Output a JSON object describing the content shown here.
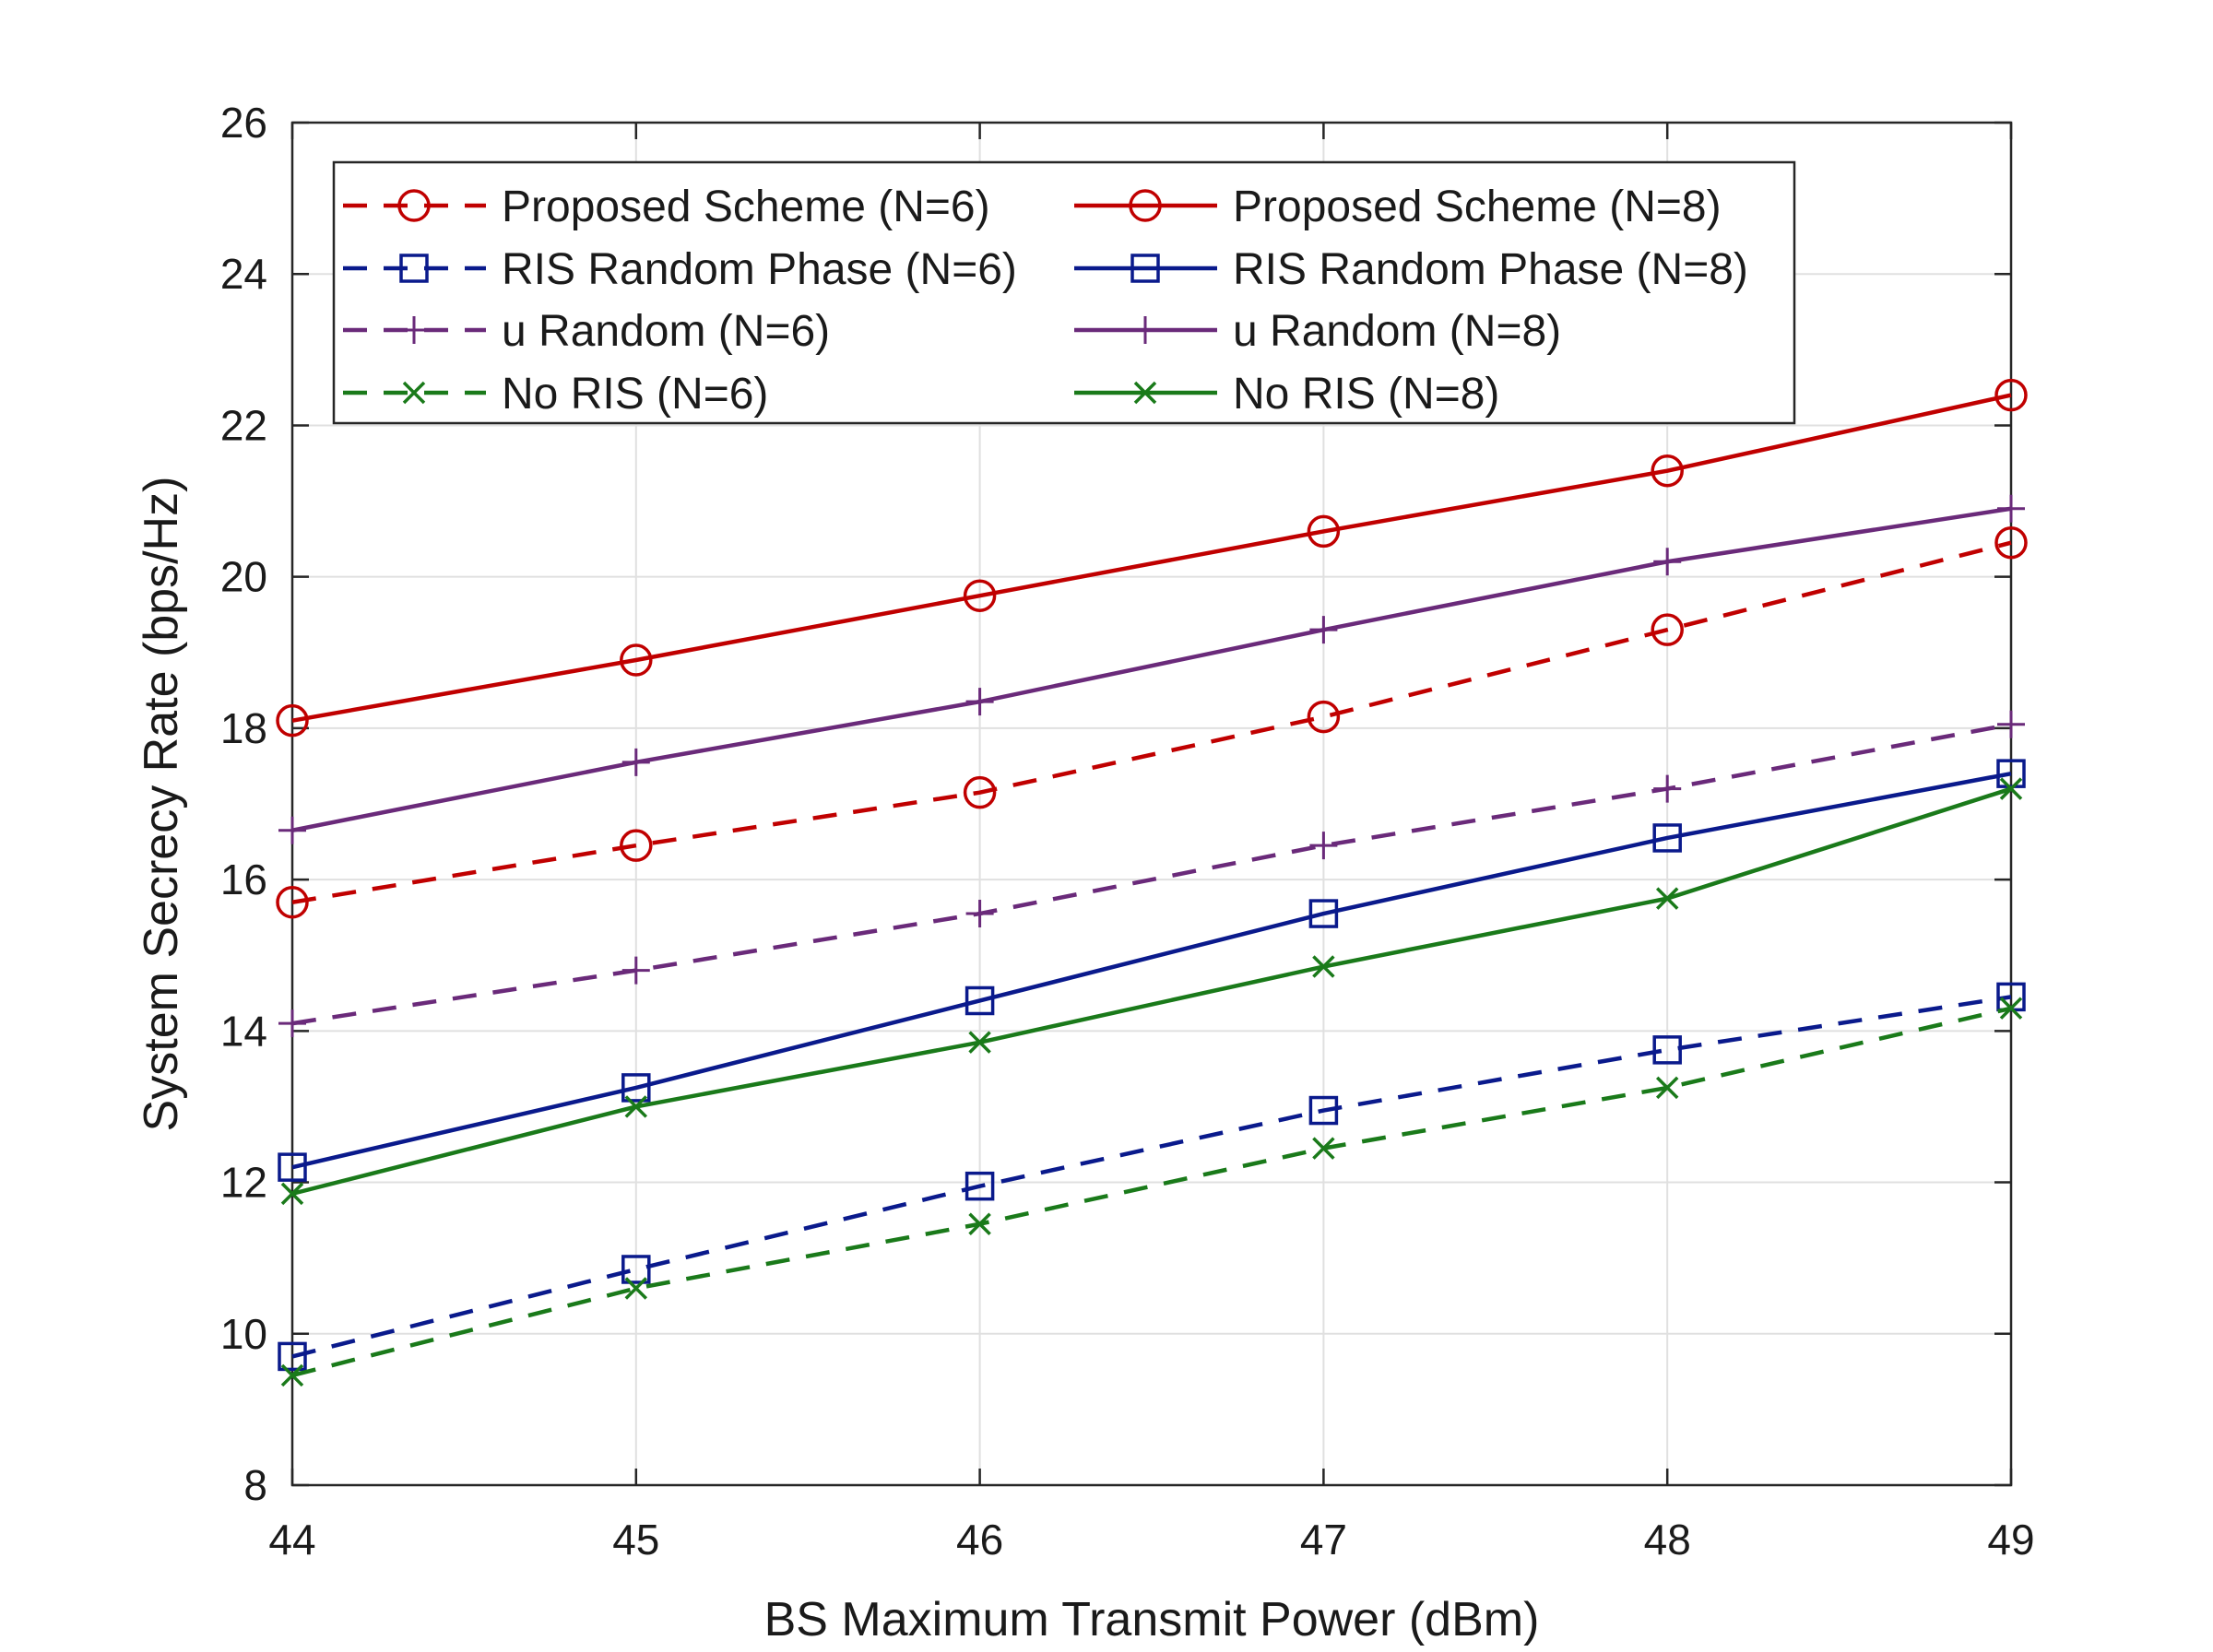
{
  "chart_data": {
    "type": "line",
    "title": "",
    "xlabel": "BS Maximum Transmit Power (dBm)",
    "ylabel": "System Secrecy Rate (bps/Hz)",
    "x": [
      44,
      45,
      46,
      47,
      48,
      49
    ],
    "xlim": [
      44,
      49
    ],
    "ylim": [
      8,
      26
    ],
    "xticks": [
      "44",
      "45",
      "46",
      "47",
      "48",
      "49"
    ],
    "yticks": [
      "8",
      "10",
      "12",
      "14",
      "16",
      "18",
      "20",
      "22",
      "24",
      "26"
    ],
    "grid": true,
    "legend_position": "top, inside, two columns",
    "series": [
      {
        "name": "Proposed Scheme (N=6)",
        "color": "#c00000",
        "dash": "dashed",
        "marker": "circle",
        "values": [
          15.7,
          16.45,
          17.15,
          18.15,
          19.3,
          20.45
        ]
      },
      {
        "name": "Proposed Scheme (N=8)",
        "color": "#c00000",
        "dash": "solid",
        "marker": "circle",
        "values": [
          18.1,
          18.9,
          19.75,
          20.6,
          21.4,
          22.4
        ]
      },
      {
        "name": "RIS Random Phase (N=6)",
        "color": "#0a1a8c",
        "dash": "dashed",
        "marker": "square",
        "values": [
          9.7,
          10.85,
          11.95,
          12.95,
          13.75,
          14.45
        ]
      },
      {
        "name": "RIS Random Phase (N=8)",
        "color": "#0a1a8c",
        "dash": "solid",
        "marker": "square",
        "values": [
          12.2,
          13.25,
          14.4,
          15.55,
          16.55,
          17.4
        ]
      },
      {
        "name": "u Random (N=6)",
        "color": "#6a2a7a",
        "dash": "dashed",
        "marker": "plus",
        "values": [
          14.1,
          14.8,
          15.55,
          16.45,
          17.2,
          18.05
        ]
      },
      {
        "name": "u Random (N=8)",
        "color": "#6a2a7a",
        "dash": "solid",
        "marker": "plus",
        "values": [
          16.65,
          17.55,
          18.35,
          19.3,
          20.2,
          20.9
        ]
      },
      {
        "name": "No RIS (N=6)",
        "color": "#1a7a1a",
        "dash": "dashed",
        "marker": "x",
        "values": [
          9.45,
          10.6,
          11.45,
          12.45,
          13.25,
          14.3
        ]
      },
      {
        "name": "No RIS (N=8)",
        "color": "#1a7a1a",
        "dash": "solid",
        "marker": "x",
        "values": [
          11.85,
          13.0,
          13.85,
          14.85,
          15.75,
          17.2
        ]
      }
    ]
  }
}
